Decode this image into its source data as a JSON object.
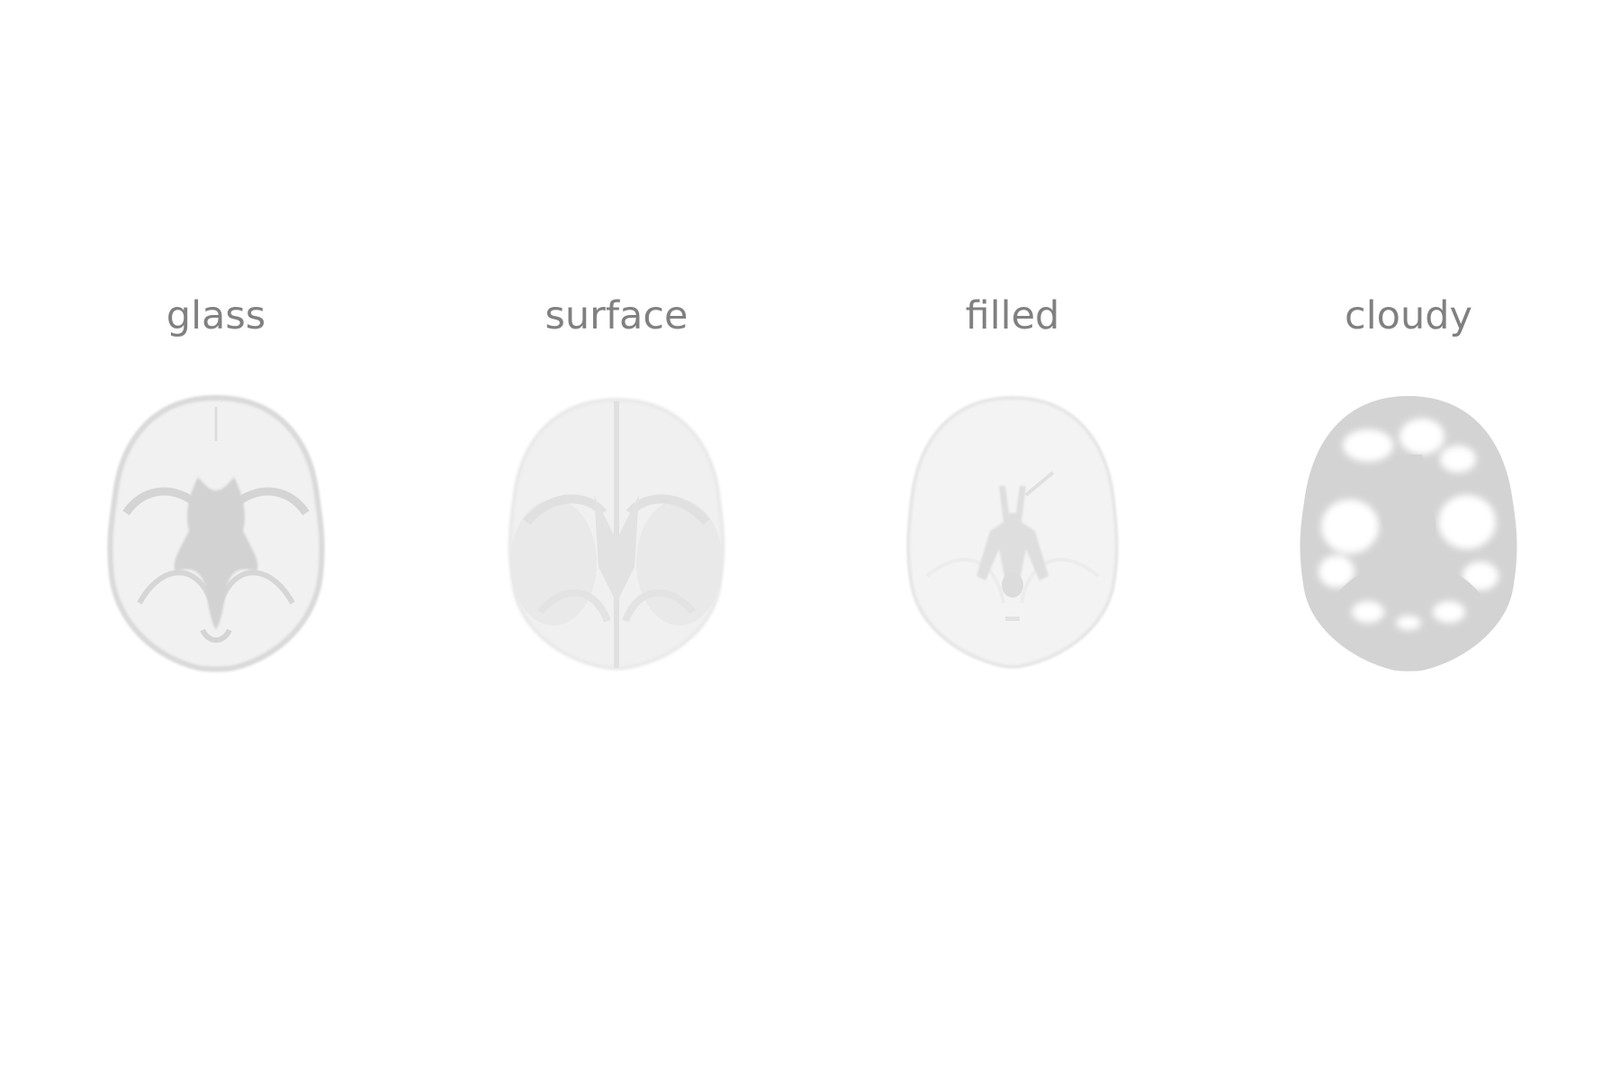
{
  "panels": [
    {
      "id": "glass",
      "title": "glass"
    },
    {
      "id": "surface",
      "title": "surface"
    },
    {
      "id": "filled",
      "title": "filled"
    },
    {
      "id": "cloudy",
      "title": "cloudy"
    }
  ],
  "colors": {
    "background": "#ffffff",
    "title_text": "#808080",
    "brain_light": "#efefef",
    "brain_mid": "#dcdcdc",
    "brain_dark": "#d2d2d2"
  }
}
